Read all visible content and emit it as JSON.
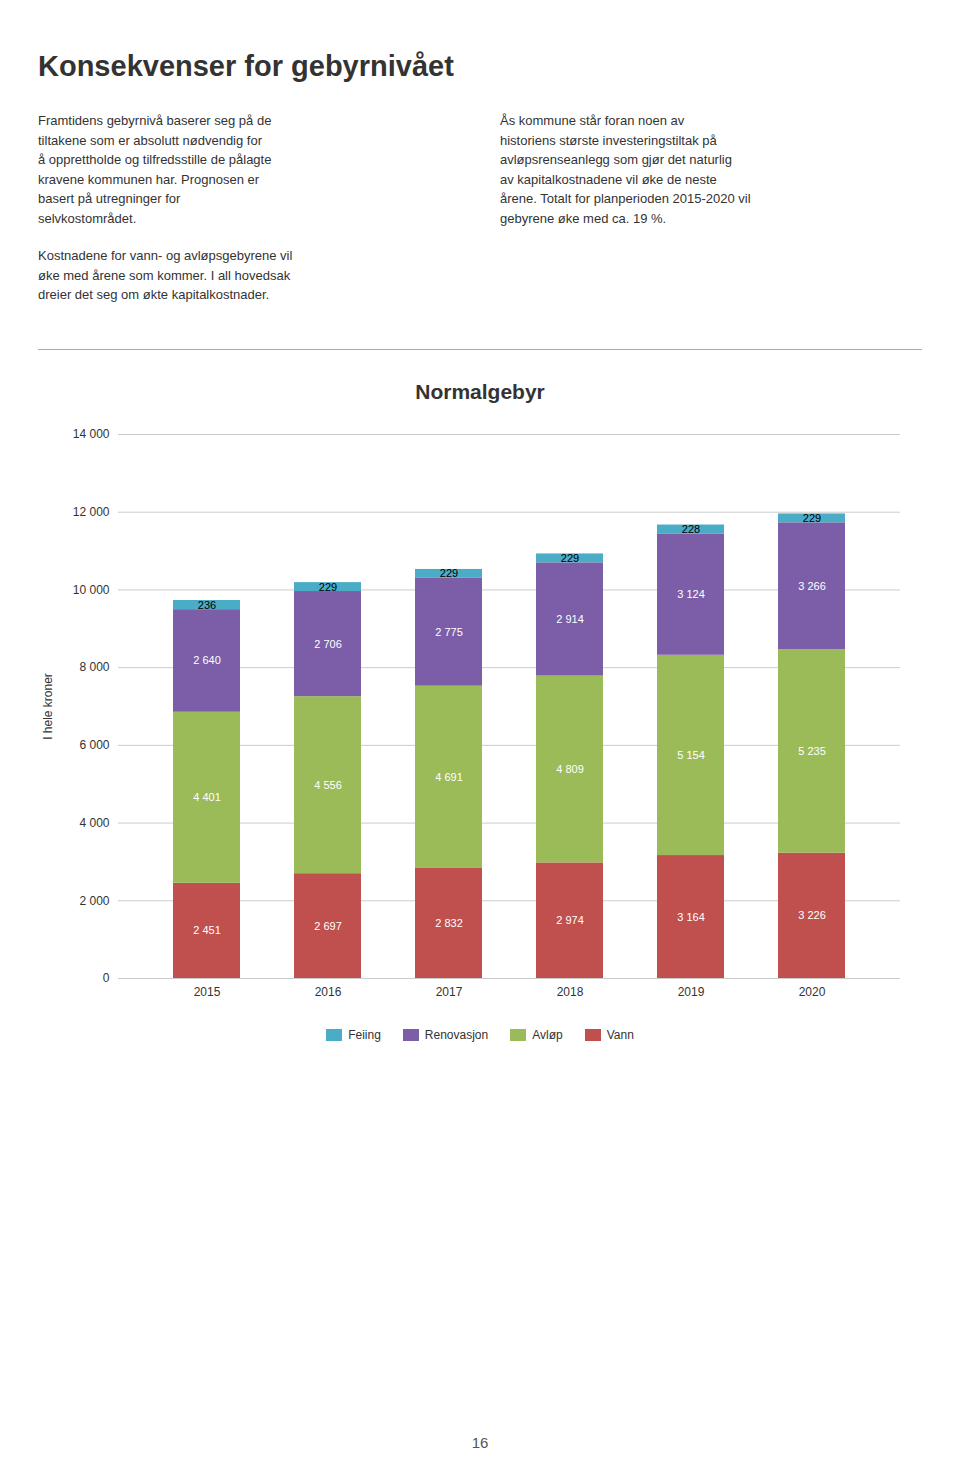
{
  "chart_data": {
    "type": "bar",
    "title": "Normalgebyr",
    "annotations": [
      "Konsekvenser for gebyrnivået",
      "Framtidens gebyrnivå baserer seg på de\ntiltakene som er absolutt nødvendig for\nå opprettholde og tilfredsstille de pålagte\nkravene kommunen har. Prognosen er\nbasert på utregninger for\nselvkostområdet.",
      "Ås kommune står foran noen av\nhistoriens største investeringstiltak på\navløpsrenseanlegg som gjør det naturlig\nav kapitalkostnadene vil øke de neste\nårene. Totalt for planperioden 2015-2020 vil\ngebyrene øke med ca. 19 %.",
      "Kostnadene for vann- og avløpsgebyrene vil\nøke med årene som kommer. I all hovedsak\ndreier det seg om økte kapitalkostnader.",
      "16"
    ],
    "categories": [
      "2015",
      "2016",
      "2017",
      "2018",
      "2019",
      "2020"
    ],
    "series": [
      {
        "name": "Vann",
        "color": "#C0504D",
        "values": [
          2451,
          2697,
          2832,
          2974,
          3164,
          3226
        ],
        "value_labels": [
          "2 451",
          "2 697",
          "2 832",
          "2 974",
          "3 164",
          "3 226"
        ]
      },
      {
        "name": "Avløp",
        "color": "#9BBB59",
        "values": [
          4401,
          4556,
          4691,
          4809,
          5154,
          5235
        ],
        "value_labels": [
          "4 401",
          "4 556",
          "4 691",
          "4 809",
          "5 154",
          "5 235"
        ]
      },
      {
        "name": "Renovasjon",
        "color": "#7B5EA7",
        "values": [
          2640,
          2706,
          2775,
          2914,
          3124,
          3266
        ],
        "value_labels": [
          "2 640",
          "2 706",
          "2 775",
          "2 914",
          "3 124",
          "3 266"
        ]
      },
      {
        "name": "Feiing",
        "color": "#4BACC6",
        "values": [
          236,
          229,
          229,
          229,
          228,
          229
        ],
        "value_labels": [
          "236",
          "229",
          "229",
          "229",
          "228",
          "229"
        ]
      }
    ],
    "ylabel": "I hele kroner",
    "ylim": [
      0,
      14000
    ],
    "yticks": [
      0,
      {
        "value": 2000,
        "label": "2 000"
      },
      {
        "value": 4000,
        "label": "4 000"
      },
      {
        "value": 6000,
        "label": "6 000"
      },
      {
        "value": 8000,
        "label": "8 000"
      },
      {
        "value": 10000,
        "label": "10 000"
      },
      {
        "value": 12000,
        "label": "12 000"
      },
      {
        "value": 14000,
        "label": "14 000"
      }
    ],
    "stacked": true,
    "grid": true,
    "data_labels": true,
    "legend": "bottom"
  }
}
